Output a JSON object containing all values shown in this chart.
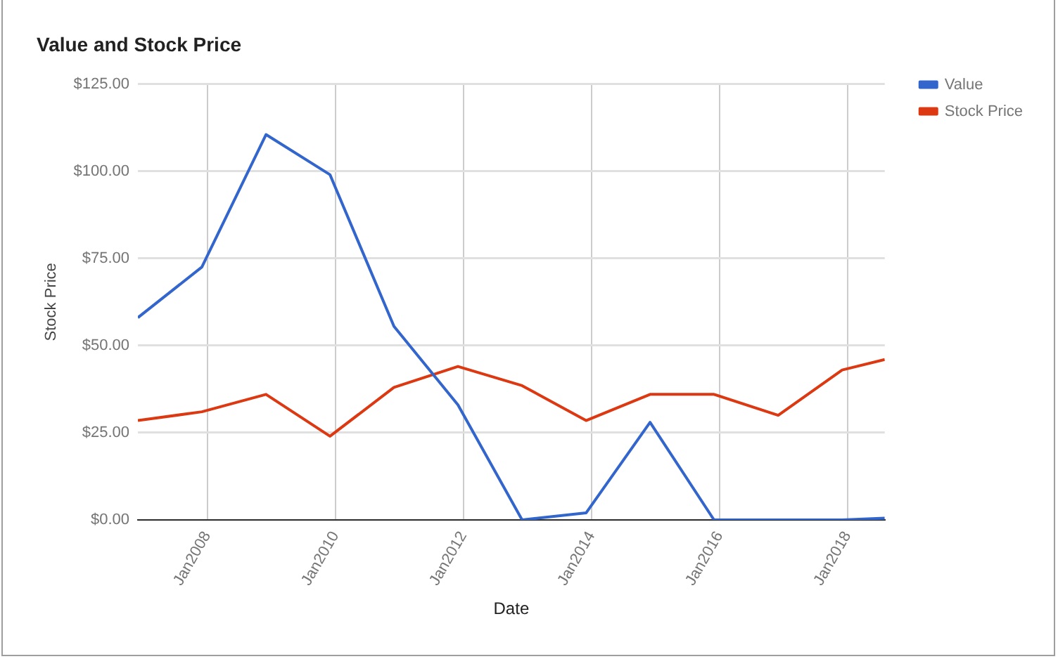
{
  "chart_data": {
    "type": "line",
    "title": "Value and Stock Price",
    "xlabel": "Date",
    "ylabel": "Stock Price",
    "x": [
      "2006-12",
      "2007-12",
      "2008-12",
      "2009-12",
      "2010-12",
      "2011-12",
      "2012-12",
      "2013-12",
      "2014-12",
      "2015-12",
      "2016-12",
      "2017-12",
      "2018-08"
    ],
    "series": [
      {
        "name": "Value",
        "color": "#3366cc",
        "values": [
          58,
          72.5,
          110.5,
          99,
          55.5,
          33,
          0,
          2,
          28,
          0,
          0,
          0,
          0.5
        ]
      },
      {
        "name": "Stock Price",
        "color": "#dc3912",
        "values": [
          28.5,
          31,
          36,
          24,
          38,
          44,
          38.5,
          28.5,
          36,
          36,
          30,
          43,
          46
        ]
      }
    ],
    "xlim": [
      "2006-12",
      "2018-08"
    ],
    "xticks": [
      {
        "value": "2008-01",
        "label": "Jan2008"
      },
      {
        "value": "2010-01",
        "label": "Jan2010"
      },
      {
        "value": "2012-01",
        "label": "Jan2012"
      },
      {
        "value": "2014-01",
        "label": "Jan2014"
      },
      {
        "value": "2016-01",
        "label": "Jan2016"
      },
      {
        "value": "2018-01",
        "label": "Jan2018"
      }
    ],
    "ylim": [
      0,
      125
    ],
    "yticks": [
      {
        "value": 0,
        "label": "$0.00"
      },
      {
        "value": 25,
        "label": "$25.00"
      },
      {
        "value": 50,
        "label": "$50.00"
      },
      {
        "value": 75,
        "label": "$75.00"
      },
      {
        "value": 100,
        "label": "$100.00"
      },
      {
        "value": 125,
        "label": "$125.00"
      }
    ],
    "grid": true,
    "legend": "top right",
    "marker": "none"
  }
}
